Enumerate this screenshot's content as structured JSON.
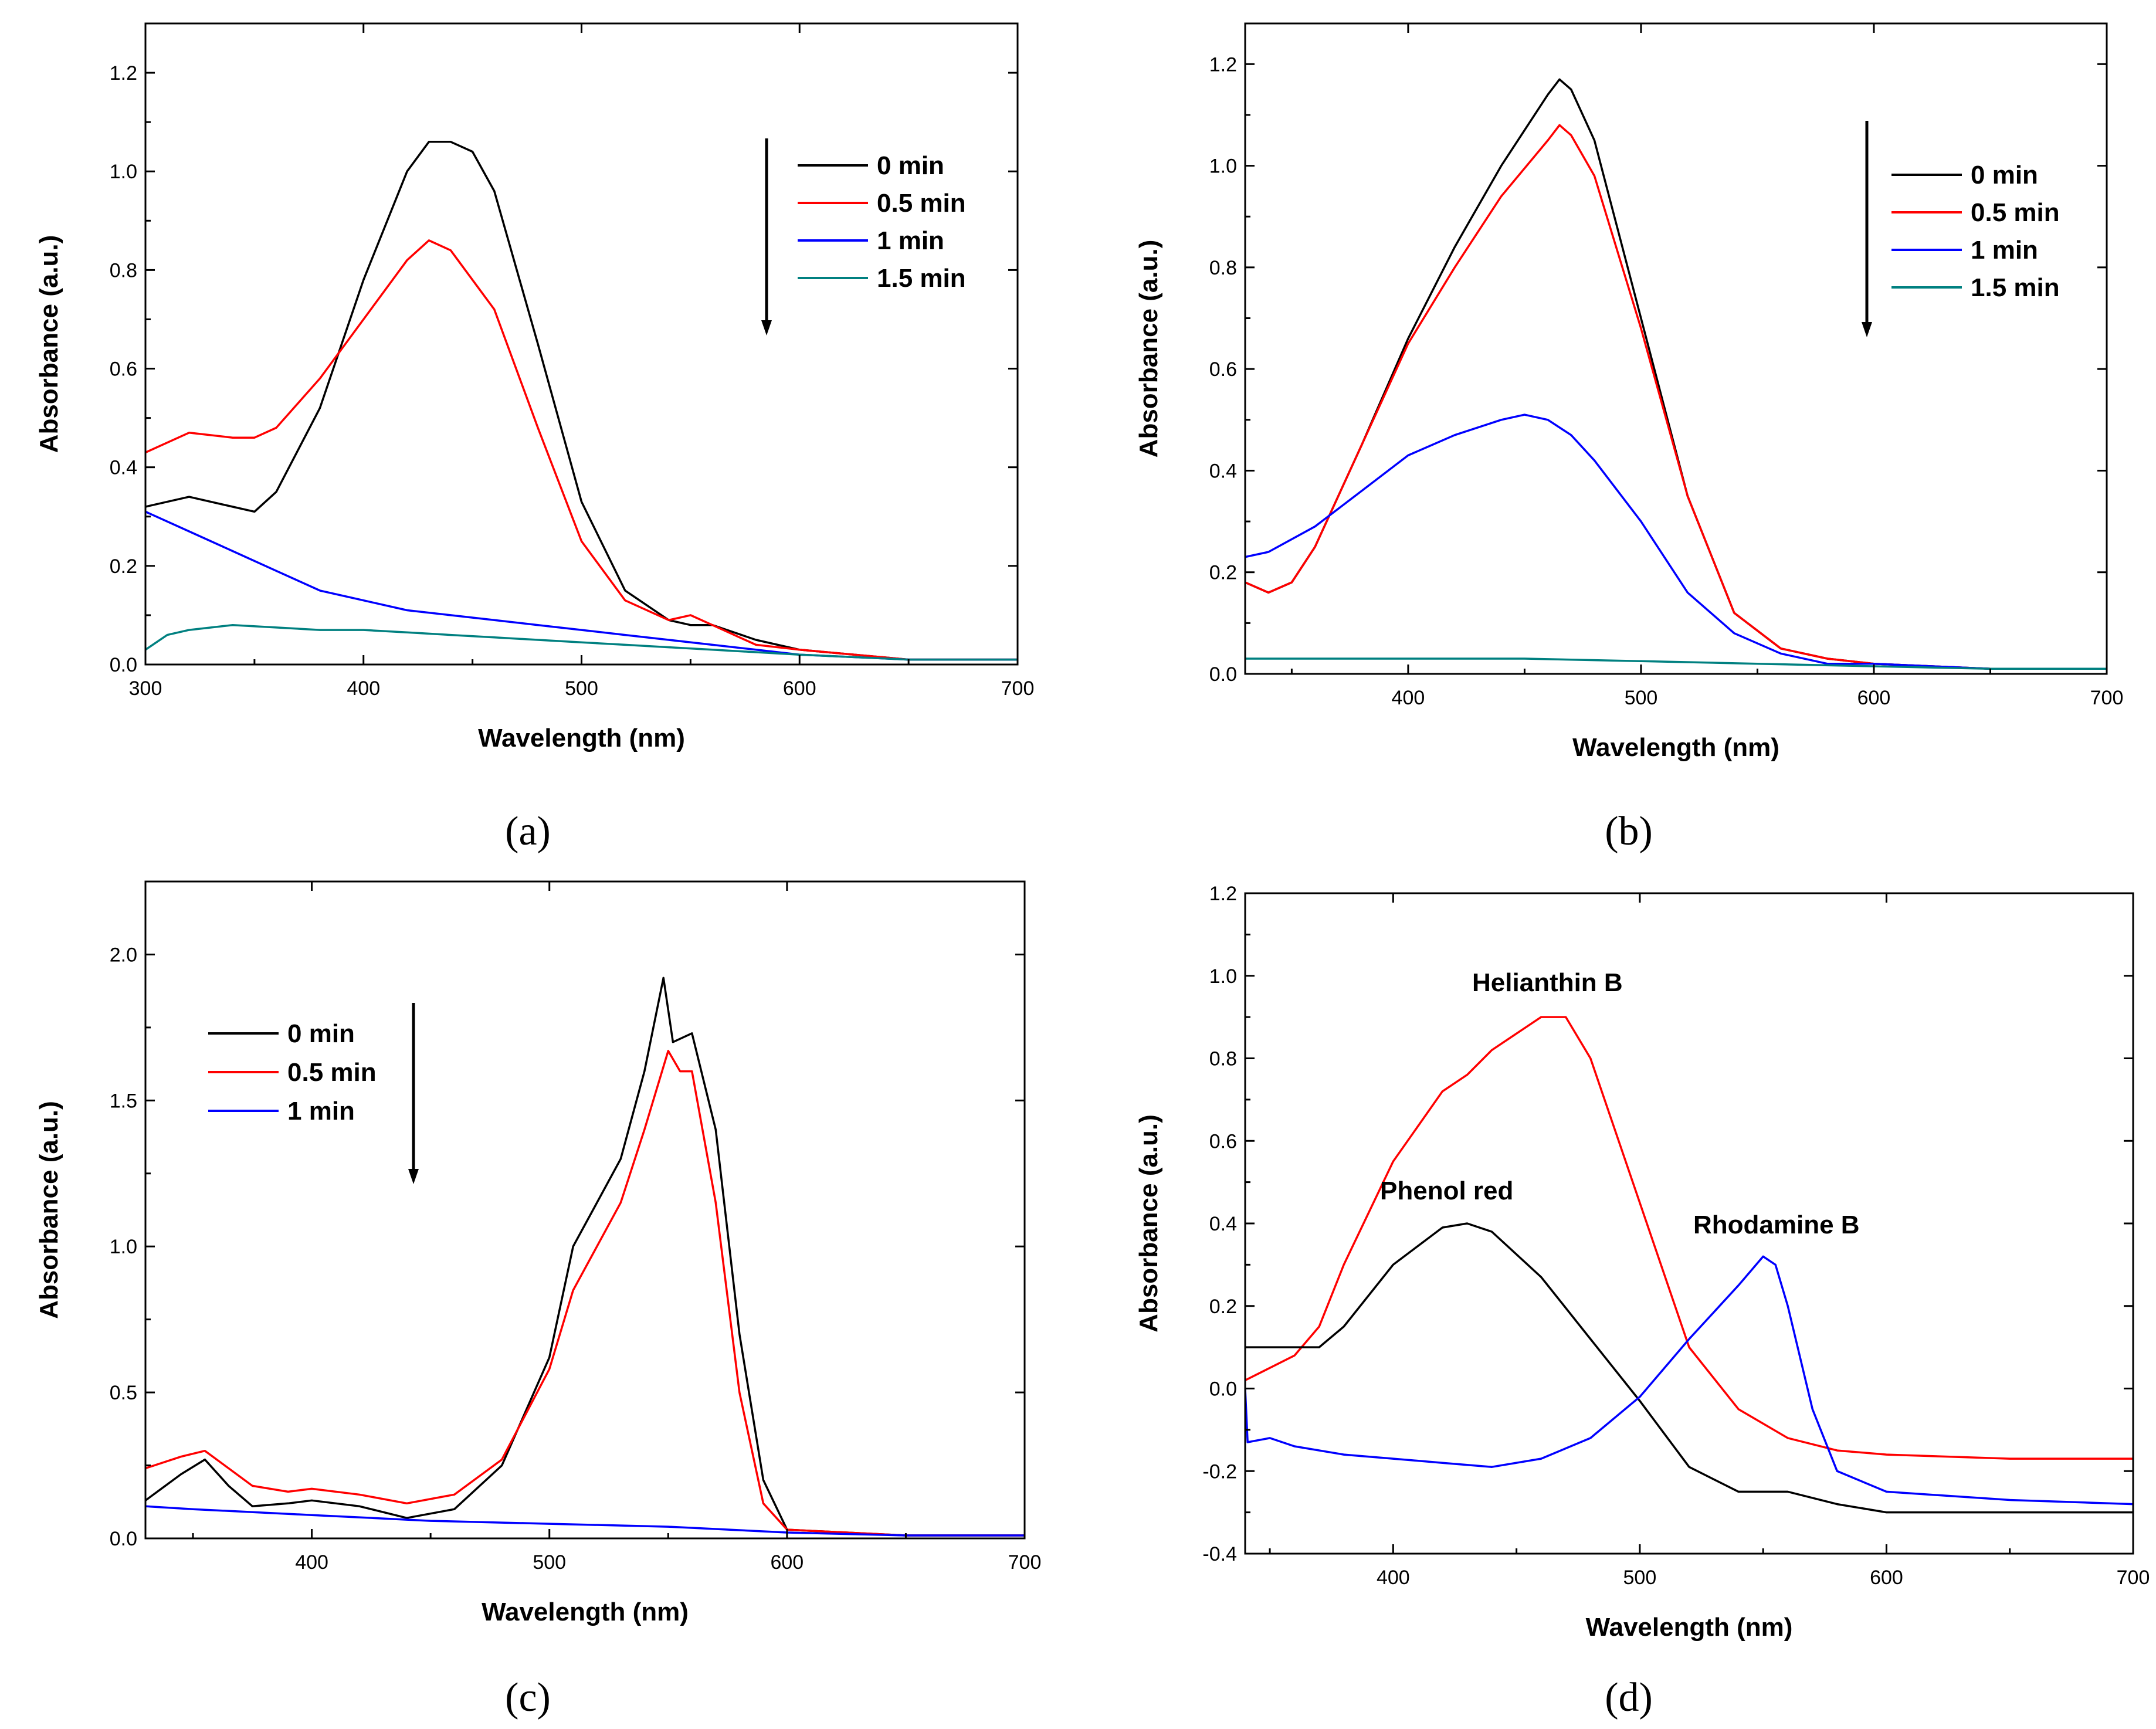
{
  "chart_data": [
    {
      "type": "line",
      "panel_label": "(a)",
      "xlabel": "Wavelength (nm)",
      "ylabel": "Absorbance (a.u.)",
      "xlim": [
        300,
        700
      ],
      "ylim": [
        0,
        1.3
      ],
      "xticks": [
        300,
        400,
        500,
        600,
        700
      ],
      "xtick_labels": [
        "300",
        "400",
        "500",
        "600",
        "700"
      ],
      "yticks": [
        0.0,
        0.2,
        0.4,
        0.6,
        0.8,
        1.0,
        1.2
      ],
      "ytick_labels": [
        "0.0",
        "0.2",
        "0.4",
        "0.6",
        "0.8",
        "1.0",
        "1.2"
      ],
      "legend_position": "top-right",
      "arrow": "down",
      "series": [
        {
          "name": "0 min",
          "color": "#000000",
          "x": [
            300,
            320,
            340,
            350,
            360,
            380,
            400,
            420,
            430,
            440,
            450,
            460,
            480,
            500,
            520,
            540,
            550,
            560,
            580,
            600,
            650,
            700
          ],
          "y": [
            0.32,
            0.34,
            0.32,
            0.31,
            0.35,
            0.52,
            0.78,
            1.0,
            1.06,
            1.06,
            1.04,
            0.96,
            0.65,
            0.33,
            0.15,
            0.09,
            0.08,
            0.08,
            0.05,
            0.03,
            0.01,
            0.01
          ]
        },
        {
          "name": "0.5 min",
          "color": "#ff0000",
          "x": [
            300,
            320,
            340,
            350,
            360,
            380,
            400,
            420,
            430,
            440,
            460,
            480,
            500,
            520,
            540,
            550,
            560,
            580,
            600,
            650,
            700
          ],
          "y": [
            0.43,
            0.47,
            0.46,
            0.46,
            0.48,
            0.58,
            0.7,
            0.82,
            0.86,
            0.84,
            0.72,
            0.48,
            0.25,
            0.13,
            0.09,
            0.1,
            0.08,
            0.04,
            0.03,
            0.01,
            0.01
          ]
        },
        {
          "name": "1 min",
          "color": "#0000ff",
          "x": [
            300,
            320,
            340,
            360,
            380,
            400,
            420,
            440,
            460,
            480,
            500,
            520,
            540,
            560,
            580,
            600,
            650,
            700
          ],
          "y": [
            0.31,
            0.27,
            0.23,
            0.19,
            0.15,
            0.13,
            0.11,
            0.1,
            0.09,
            0.08,
            0.07,
            0.06,
            0.05,
            0.04,
            0.03,
            0.02,
            0.01,
            0.01
          ]
        },
        {
          "name": "1.5 min",
          "color": "#008080",
          "x": [
            300,
            310,
            320,
            340,
            360,
            380,
            400,
            420,
            440,
            460,
            480,
            500,
            520,
            540,
            560,
            580,
            600,
            650,
            700
          ],
          "y": [
            0.03,
            0.06,
            0.07,
            0.08,
            0.075,
            0.07,
            0.07,
            0.065,
            0.06,
            0.055,
            0.05,
            0.045,
            0.04,
            0.035,
            0.03,
            0.025,
            0.02,
            0.01,
            0.01
          ]
        }
      ]
    },
    {
      "type": "line",
      "panel_label": "(b)",
      "xlabel": "Wavelength (nm)",
      "ylabel": "Absorbance (a.u.)",
      "xlim": [
        330,
        700
      ],
      "ylim": [
        0,
        1.28
      ],
      "xticks": [
        400,
        500,
        600,
        700
      ],
      "xtick_labels": [
        "400",
        "500",
        "600",
        "700"
      ],
      "yticks": [
        0.0,
        0.2,
        0.4,
        0.6,
        0.8,
        1.0,
        1.2
      ],
      "ytick_labels": [
        "0.0",
        "0.2",
        "0.4",
        "0.6",
        "0.8",
        "1.0",
        "1.2"
      ],
      "legend_position": "top-right",
      "arrow": "down",
      "series": [
        {
          "name": "0 min",
          "color": "#000000",
          "x": [
            330,
            340,
            350,
            360,
            380,
            400,
            420,
            440,
            460,
            465,
            470,
            480,
            500,
            520,
            540,
            560,
            580,
            600,
            650,
            700
          ],
          "y": [
            0.18,
            0.16,
            0.18,
            0.25,
            0.45,
            0.66,
            0.84,
            1.0,
            1.14,
            1.17,
            1.15,
            1.05,
            0.7,
            0.35,
            0.12,
            0.05,
            0.03,
            0.02,
            0.01,
            0.01
          ]
        },
        {
          "name": "0.5 min",
          "color": "#ff0000",
          "x": [
            330,
            340,
            350,
            360,
            380,
            400,
            420,
            440,
            460,
            465,
            470,
            480,
            500,
            520,
            540,
            560,
            580,
            600,
            650,
            700
          ],
          "y": [
            0.18,
            0.16,
            0.18,
            0.25,
            0.45,
            0.65,
            0.8,
            0.94,
            1.05,
            1.08,
            1.06,
            0.98,
            0.68,
            0.35,
            0.12,
            0.05,
            0.03,
            0.02,
            0.01,
            0.01
          ]
        },
        {
          "name": "1 min",
          "color": "#0000ff",
          "x": [
            330,
            340,
            360,
            380,
            400,
            420,
            440,
            450,
            460,
            470,
            480,
            500,
            520,
            540,
            560,
            580,
            600,
            650,
            700
          ],
          "y": [
            0.23,
            0.24,
            0.29,
            0.36,
            0.43,
            0.47,
            0.5,
            0.51,
            0.5,
            0.47,
            0.42,
            0.3,
            0.16,
            0.08,
            0.04,
            0.02,
            0.02,
            0.01,
            0.01
          ]
        },
        {
          "name": "1.5 min",
          "color": "#008080",
          "x": [
            330,
            350,
            380,
            400,
            450,
            500,
            550,
            600,
            650,
            700
          ],
          "y": [
            0.03,
            0.03,
            0.03,
            0.03,
            0.03,
            0.025,
            0.02,
            0.015,
            0.01,
            0.01
          ]
        }
      ]
    },
    {
      "type": "line",
      "panel_label": "(c)",
      "xlabel": "Wavelength (nm)",
      "ylabel": "Absorbance (a.u.)",
      "xlim": [
        330,
        700
      ],
      "ylim": [
        0,
        2.25
      ],
      "xticks": [
        400,
        500,
        600,
        700
      ],
      "xtick_labels": [
        "400",
        "500",
        "600",
        "700"
      ],
      "yticks": [
        0.0,
        0.5,
        1.0,
        1.5,
        2.0
      ],
      "ytick_labels": [
        "0.0",
        "0.5",
        "1.0",
        "1.5",
        "2.0"
      ],
      "legend_position": "top-left",
      "arrow": "down",
      "series": [
        {
          "name": "0 min",
          "color": "#000000",
          "x": [
            330,
            345,
            355,
            365,
            375,
            390,
            400,
            420,
            440,
            460,
            480,
            500,
            510,
            520,
            530,
            540,
            548,
            552,
            560,
            570,
            580,
            590,
            600,
            650,
            700
          ],
          "y": [
            0.13,
            0.22,
            0.27,
            0.18,
            0.11,
            0.12,
            0.13,
            0.11,
            0.07,
            0.1,
            0.25,
            0.62,
            1.0,
            1.15,
            1.3,
            1.6,
            1.92,
            1.7,
            1.73,
            1.4,
            0.7,
            0.2,
            0.03,
            0.01,
            0.01
          ]
        },
        {
          "name": "0.5 min",
          "color": "#ff0000",
          "x": [
            330,
            345,
            355,
            365,
            375,
            390,
            400,
            420,
            440,
            460,
            480,
            500,
            510,
            520,
            530,
            540,
            550,
            555,
            560,
            570,
            580,
            590,
            600,
            650,
            700
          ],
          "y": [
            0.24,
            0.28,
            0.3,
            0.24,
            0.18,
            0.16,
            0.17,
            0.15,
            0.12,
            0.15,
            0.27,
            0.58,
            0.85,
            1.0,
            1.15,
            1.4,
            1.67,
            1.6,
            1.6,
            1.15,
            0.5,
            0.12,
            0.03,
            0.01,
            0.01
          ]
        },
        {
          "name": "1 min",
          "color": "#0000ff",
          "x": [
            330,
            350,
            400,
            450,
            500,
            550,
            600,
            650,
            700
          ],
          "y": [
            0.11,
            0.1,
            0.08,
            0.06,
            0.05,
            0.04,
            0.02,
            0.01,
            0.01
          ]
        }
      ]
    },
    {
      "type": "line",
      "panel_label": "(d)",
      "xlabel": "Wavelength (nm)",
      "ylabel": "Absorbance (a.u.)",
      "xlim": [
        340,
        700
      ],
      "ylim": [
        -0.4,
        1.2
      ],
      "xticks": [
        400,
        500,
        600,
        700
      ],
      "xtick_labels": [
        "400",
        "500",
        "600",
        "700"
      ],
      "yticks": [
        -0.4,
        -0.2,
        0.0,
        0.2,
        0.4,
        0.6,
        0.8,
        1.0,
        1.2
      ],
      "ytick_labels": [
        "-0.4",
        "-0.2",
        "0.0",
        "0.2",
        "0.4",
        "0.6",
        "0.8",
        "1.0",
        "1.2"
      ],
      "annotations": [
        "Helianthin B",
        "Phenol red",
        "Rhodamine B"
      ],
      "series": [
        {
          "color": "#ff0000",
          "x": [
            340,
            350,
            360,
            370,
            380,
            400,
            420,
            430,
            440,
            460,
            470,
            480,
            500,
            520,
            540,
            560,
            580,
            600,
            650,
            700
          ],
          "y": [
            0.02,
            0.05,
            0.08,
            0.15,
            0.3,
            0.55,
            0.72,
            0.76,
            0.82,
            0.9,
            0.9,
            0.8,
            0.45,
            0.1,
            -0.05,
            -0.12,
            -0.15,
            -0.16,
            -0.17,
            -0.17
          ]
        },
        {
          "color": "#000000",
          "x": [
            340,
            350,
            360,
            370,
            380,
            400,
            420,
            430,
            440,
            460,
            480,
            500,
            520,
            540,
            550,
            560,
            580,
            600,
            650,
            700
          ],
          "y": [
            0.1,
            0.1,
            0.1,
            0.1,
            0.15,
            0.3,
            0.39,
            0.4,
            0.38,
            0.27,
            0.12,
            -0.03,
            -0.19,
            -0.25,
            -0.25,
            -0.25,
            -0.28,
            -0.3,
            -0.3,
            -0.3
          ]
        },
        {
          "color": "#0000ff",
          "x": [
            340,
            341,
            350,
            360,
            380,
            400,
            420,
            440,
            460,
            480,
            500,
            520,
            540,
            550,
            555,
            560,
            570,
            580,
            600,
            650,
            700
          ],
          "y": [
            0.0,
            -0.13,
            -0.12,
            -0.14,
            -0.16,
            -0.17,
            -0.18,
            -0.19,
            -0.17,
            -0.12,
            -0.02,
            0.12,
            0.25,
            0.32,
            0.3,
            0.2,
            -0.05,
            -0.2,
            -0.25,
            -0.27,
            -0.28
          ]
        }
      ]
    }
  ]
}
